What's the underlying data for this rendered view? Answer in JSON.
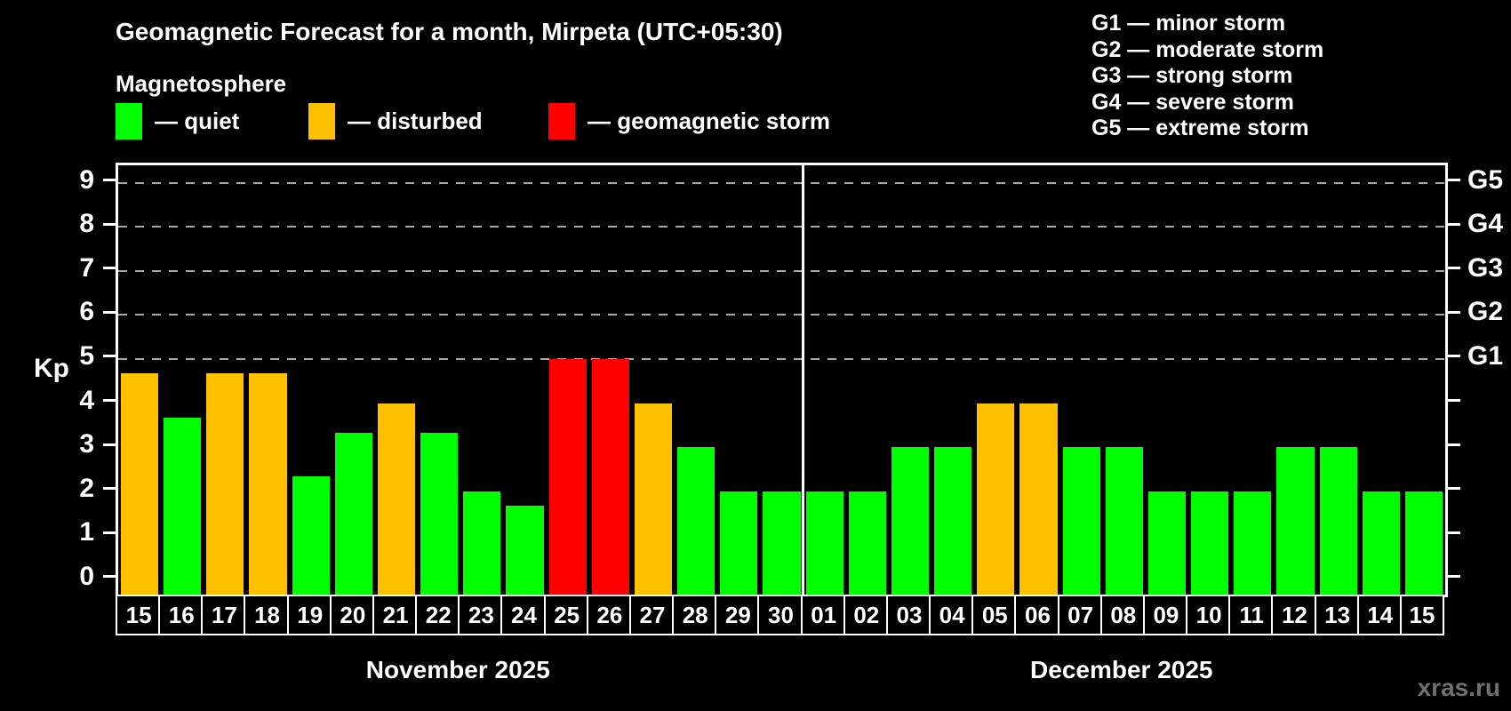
{
  "header": {
    "title": "Geomagnetic Forecast for a month, Mirpeta (UTC+05:30)",
    "subtitle": "Magnetosphere"
  },
  "kp_legend": [
    {
      "key": "quiet",
      "label": "— quiet"
    },
    {
      "key": "disturbed",
      "label": "— disturbed"
    },
    {
      "key": "storm",
      "label": "— geomagnetic storm"
    }
  ],
  "storm_scale_legend": [
    "G1 — minor storm",
    "G2 — moderate storm",
    "G3 — strong storm",
    "G4 — severe storm",
    "G5 — extreme storm"
  ],
  "axis": {
    "kp_label": "Kp",
    "left_ticks": [
      "0",
      "1",
      "2",
      "3",
      "4",
      "5",
      "6",
      "7",
      "8",
      "9"
    ],
    "right_labels": [
      {
        "label": "G1",
        "kp": 5
      },
      {
        "label": "G2",
        "kp": 6
      },
      {
        "label": "G3",
        "kp": 7
      },
      {
        "label": "G4",
        "kp": 8
      },
      {
        "label": "G5",
        "kp": 9
      }
    ]
  },
  "colors": {
    "quiet": "#00ff00",
    "disturbed": "#ffc000",
    "storm": "#ff0000",
    "axis": "#ffffff",
    "grid": "#a8a8a8"
  },
  "chart_data": {
    "type": "bar",
    "title": "Geomagnetic Forecast for a month, Mirpeta (UTC+05:30)",
    "ylabel": "Kp",
    "ylim": [
      0,
      9
    ],
    "yticks": [
      0,
      1,
      2,
      3,
      4,
      5,
      6,
      7,
      8,
      9
    ],
    "gridlines_at": [
      5,
      6,
      7,
      8,
      9
    ],
    "legend_position": "top-left",
    "series": [
      {
        "month": "November 2025",
        "days": [
          "15",
          "16",
          "17",
          "18",
          "19",
          "20",
          "21",
          "22",
          "23",
          "24",
          "25",
          "26",
          "27",
          "28",
          "29",
          "30"
        ],
        "values": [
          4.67,
          3.67,
          4.67,
          4.67,
          2.33,
          3.33,
          4,
          3.33,
          2,
          1.67,
          5,
          5,
          4,
          3,
          2,
          2
        ],
        "status": [
          "disturbed",
          "quiet",
          "disturbed",
          "disturbed",
          "quiet",
          "quiet",
          "disturbed",
          "quiet",
          "quiet",
          "quiet",
          "storm",
          "storm",
          "disturbed",
          "quiet",
          "quiet",
          "quiet"
        ]
      },
      {
        "month": "December 2025",
        "days": [
          "01",
          "02",
          "03",
          "04",
          "05",
          "06",
          "07",
          "08",
          "09",
          "10",
          "11",
          "12",
          "13",
          "14",
          "15"
        ],
        "values": [
          2,
          2,
          3,
          3,
          4,
          4,
          3,
          3,
          2,
          2,
          2,
          3,
          3,
          2,
          2
        ],
        "status": [
          "quiet",
          "quiet",
          "quiet",
          "quiet",
          "disturbed",
          "disturbed",
          "quiet",
          "quiet",
          "quiet",
          "quiet",
          "quiet",
          "quiet",
          "quiet",
          "quiet",
          "quiet"
        ]
      }
    ]
  },
  "watermark": "xras.ru"
}
